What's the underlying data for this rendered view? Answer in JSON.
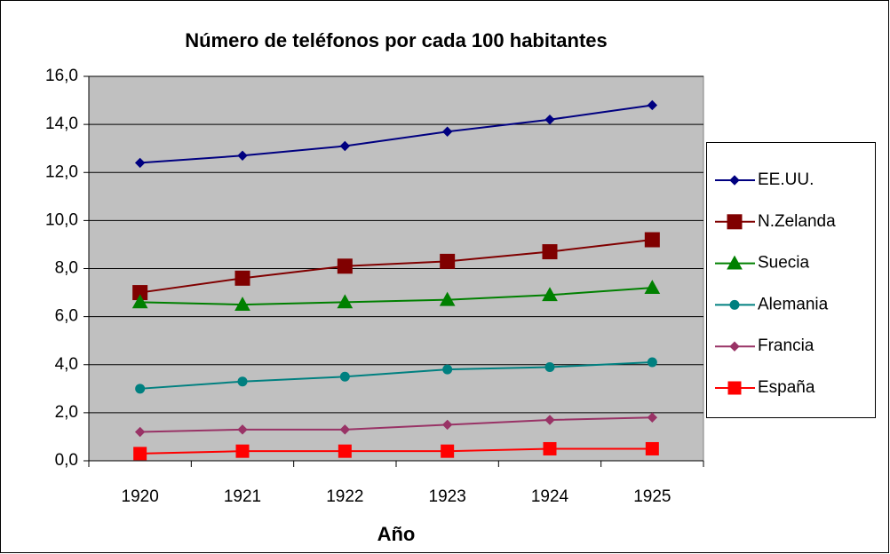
{
  "chart_data": {
    "type": "line",
    "title": "Número de teléfonos por cada 100 habitantes",
    "x_label": "Año",
    "categories": [
      "1920",
      "1921",
      "1922",
      "1923",
      "1924",
      "1925"
    ],
    "series": [
      {
        "name": "EE.UU.",
        "color": "#000080",
        "marker": "diamond",
        "values": [
          12.4,
          12.7,
          13.1,
          13.7,
          14.2,
          14.8
        ]
      },
      {
        "name": "N.Zelanda",
        "color": "#800000",
        "marker": "square",
        "values": [
          7.0,
          7.6,
          8.1,
          8.3,
          8.7,
          9.2
        ]
      },
      {
        "name": "Suecia",
        "color": "#008000",
        "marker": "triangle",
        "values": [
          6.6,
          6.5,
          6.6,
          6.7,
          6.9,
          7.2
        ]
      },
      {
        "name": "Alemania",
        "color": "#008080",
        "marker": "circle",
        "values": [
          3.0,
          3.3,
          3.5,
          3.8,
          3.9,
          4.1
        ]
      },
      {
        "name": "Francia",
        "color": "#993366",
        "marker": "diamond",
        "values": [
          1.2,
          1.3,
          1.3,
          1.5,
          1.7,
          1.8
        ]
      },
      {
        "name": "España",
        "color": "#ff0000",
        "marker": "square",
        "values": [
          0.3,
          0.4,
          0.4,
          0.4,
          0.5,
          0.5
        ]
      }
    ],
    "ylim": [
      0,
      16
    ],
    "yticks": [
      {
        "value": 0,
        "label": "0,0"
      },
      {
        "value": 2,
        "label": "2,0"
      },
      {
        "value": 4,
        "label": "4,0"
      },
      {
        "value": 6,
        "label": "6,0"
      },
      {
        "value": 8,
        "label": "8,0"
      },
      {
        "value": 10,
        "label": "10,0"
      },
      {
        "value": 12,
        "label": "12,0"
      },
      {
        "value": 14,
        "label": "14,0"
      },
      {
        "value": 16,
        "label": "16,0"
      }
    ],
    "grid": true,
    "legend": "right"
  }
}
